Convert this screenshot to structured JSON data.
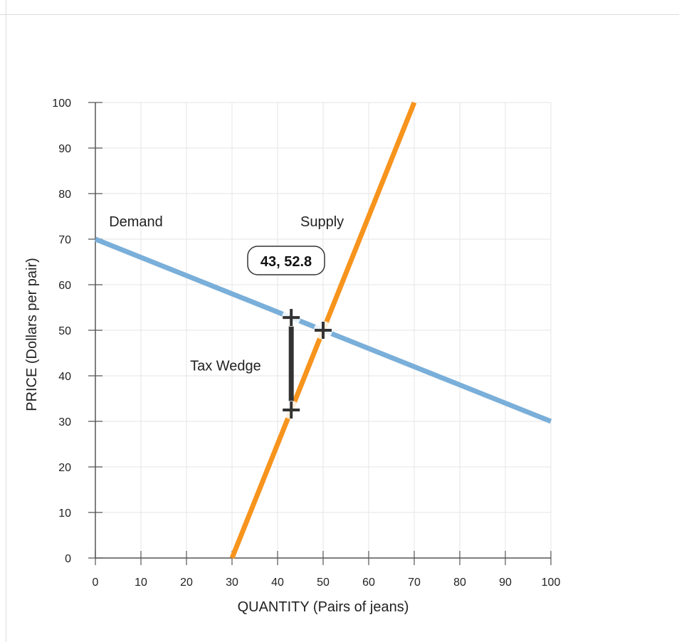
{
  "chart_data": {
    "type": "line",
    "xlabel": "QUANTITY (Pairs of jeans)",
    "ylabel": "PRICE (Dollars per pair)",
    "xlim": [
      0,
      100
    ],
    "ylim": [
      0,
      100
    ],
    "x_ticks": [
      0,
      10,
      20,
      30,
      40,
      50,
      60,
      70,
      80,
      90,
      100
    ],
    "y_ticks": [
      0,
      10,
      20,
      30,
      40,
      50,
      60,
      70,
      80,
      90,
      100
    ],
    "grid": true,
    "series": [
      {
        "name": "Demand",
        "color": "#7AAFD9",
        "points": [
          [
            0,
            70
          ],
          [
            100,
            30
          ]
        ]
      },
      {
        "name": "Supply",
        "color": "#F7941D",
        "points": [
          [
            30,
            0
          ],
          [
            70,
            100
          ]
        ]
      }
    ],
    "markers": [
      {
        "x": 50,
        "y": 50
      },
      {
        "x": 43,
        "y": 52.8
      },
      {
        "x": 43,
        "y": 32.5
      }
    ],
    "tax_wedge": {
      "label": "Tax Wedge",
      "x": 43,
      "y_top": 52.8,
      "y_bottom": 32.5
    },
    "readout": {
      "text": "43, 52.8"
    }
  }
}
